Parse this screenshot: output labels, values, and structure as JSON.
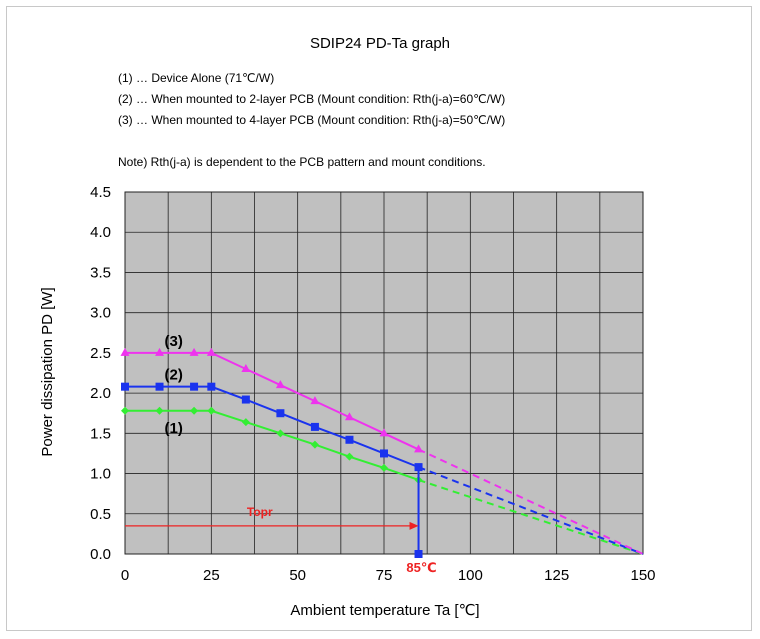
{
  "chart_data": {
    "type": "line",
    "title": "SDIP24 PD-Ta graph",
    "notes": [
      "(1) … Device Alone (71℃/W)",
      "(2) … When mounted to 2-layer PCB (Mount condition: Rth(j-a)=60℃/W)",
      "(3) … When mounted to 4-layer PCB (Mount condition: Rth(j-a)=50℃/W)"
    ],
    "remark": "Note) Rth(j-a) is dependent to the PCB pattern and mount conditions.",
    "xlabel": "Ambient temperature Ta [℃]",
    "ylabel": "Power dissipation PD [W]",
    "xlim": [
      0,
      150
    ],
    "ylim": [
      0,
      4.5
    ],
    "xticks": [
      "0",
      "25",
      "50",
      "75",
      "100",
      "125",
      "150"
    ],
    "yticks": [
      "0.0",
      "0.5",
      "1.0",
      "1.5",
      "2.0",
      "2.5",
      "3.0",
      "3.5",
      "4.0",
      "4.5"
    ],
    "grid": true,
    "plot_background": "#c0c0c0",
    "series": [
      {
        "name": "(1)",
        "color": "#33ee33",
        "marker": "diamond",
        "points": [
          [
            0,
            1.78
          ],
          [
            10,
            1.78
          ],
          [
            20,
            1.78
          ],
          [
            25,
            1.78
          ],
          [
            35,
            1.64
          ],
          [
            45,
            1.5
          ],
          [
            55,
            1.36
          ],
          [
            65,
            1.21
          ],
          [
            75,
            1.07
          ],
          [
            85,
            0.92
          ]
        ],
        "extrapolation": [
          [
            85,
            0.92
          ],
          [
            150,
            0
          ]
        ]
      },
      {
        "name": "(2)",
        "color": "#1a33ee",
        "marker": "square",
        "points": [
          [
            0,
            2.08
          ],
          [
            10,
            2.08
          ],
          [
            20,
            2.08
          ],
          [
            25,
            2.08
          ],
          [
            35,
            1.92
          ],
          [
            45,
            1.75
          ],
          [
            55,
            1.58
          ],
          [
            65,
            1.42
          ],
          [
            75,
            1.25
          ],
          [
            85,
            1.08
          ]
        ],
        "extrapolation": [
          [
            85,
            1.08
          ],
          [
            150,
            0
          ]
        ],
        "drop": [
          [
            85,
            1.08
          ],
          [
            85,
            0
          ]
        ]
      },
      {
        "name": "(3)",
        "color": "#ee33ee",
        "marker": "triangle",
        "points": [
          [
            0,
            2.5
          ],
          [
            10,
            2.5
          ],
          [
            20,
            2.5
          ],
          [
            25,
            2.5
          ],
          [
            35,
            2.3
          ],
          [
            45,
            2.1
          ],
          [
            55,
            1.9
          ],
          [
            65,
            1.7
          ],
          [
            75,
            1.5
          ],
          [
            85,
            1.3
          ]
        ],
        "extrapolation": [
          [
            85,
            1.3
          ],
          [
            150,
            0
          ]
        ]
      }
    ],
    "topr": {
      "label": "Topr",
      "x_from": 0,
      "x_to": 85,
      "y": 0.35,
      "color": "#ee2222"
    },
    "limit_label": {
      "text": "85℃",
      "x": 85,
      "color": "#ee2222"
    }
  }
}
